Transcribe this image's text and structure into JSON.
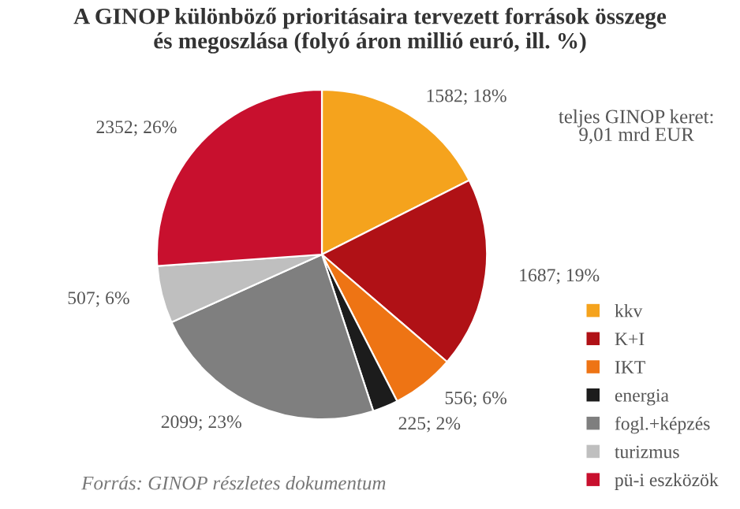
{
  "chart_data": {
    "type": "pie",
    "title": "A GINOP különböző prioritásaira tervezett források összege\nés megoszlása (folyó áron millió euró, ill. %)",
    "categories": [
      "kkv",
      "K+I",
      "IKT",
      "energia",
      "fogl.+képzés",
      "turizmus",
      "pü-i eszközök"
    ],
    "values": [
      1582,
      1687,
      556,
      225,
      2099,
      507,
      2352
    ],
    "colors": [
      "#f5a31d",
      "#b01116",
      "#ee7414",
      "#1c1c1c",
      "#7f7f7f",
      "#bfbfbf",
      "#c8102e"
    ],
    "value_labels": [
      "1582; 18%",
      "1687; 19%",
      "556; 6%",
      "225; 2%",
      "2099; 23%",
      "507; 6%",
      "2352; 26%"
    ],
    "legend": "right",
    "annotations": [
      "teljes GINOP keret:\n9,01 mrd EUR",
      "Forrás: GINOP részletes dokumentum"
    ]
  }
}
